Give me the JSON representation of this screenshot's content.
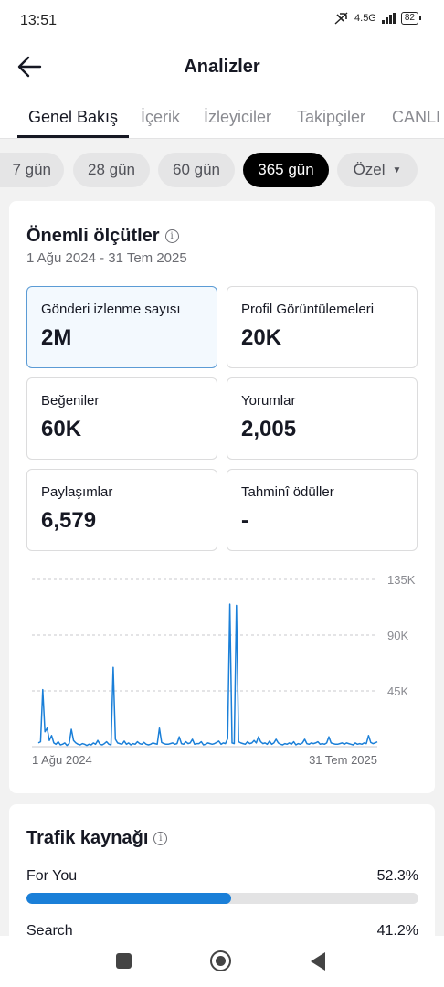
{
  "status": {
    "time": "13:51",
    "network": "4.5G",
    "battery": "82"
  },
  "header": {
    "title": "Analizler"
  },
  "tabs": [
    {
      "label": "Genel Bakış",
      "active": true
    },
    {
      "label": "İçerik"
    },
    {
      "label": "İzleyiciler"
    },
    {
      "label": "Takipçiler"
    },
    {
      "label": "CANLI"
    }
  ],
  "ranges": [
    {
      "label": "7 gün"
    },
    {
      "label": "28 gün"
    },
    {
      "label": "60 gün"
    },
    {
      "label": "365 gün",
      "active": true
    },
    {
      "label": "Özel"
    }
  ],
  "key_metrics": {
    "title": "Önemli ölçütler",
    "date_range": "1 Ağu 2024 - 31 Tem 2025",
    "items": [
      {
        "label": "Gönderi izlenme sayısı",
        "value": "2M",
        "active": true
      },
      {
        "label": "Profil Görüntülemeleri",
        "value": "20K"
      },
      {
        "label": "Beğeniler",
        "value": "60K"
      },
      {
        "label": "Yorumlar",
        "value": "2,005"
      },
      {
        "label": "Paylaşımlar",
        "value": "6,579"
      },
      {
        "label": "Tahminî ödüller",
        "value": "-"
      }
    ]
  },
  "chart_data": {
    "type": "line",
    "y_ticks": [
      "135K",
      "90K",
      "45K"
    ],
    "x_labels": [
      "1 Ağu 2024",
      "31 Tem 2025"
    ],
    "ylim": [
      0,
      135000
    ],
    "grid": true,
    "color": "#1a7fd8",
    "values": [
      3000,
      4000,
      46000,
      12000,
      15000,
      5000,
      9000,
      3000,
      2000,
      4000,
      1500,
      2000,
      3000,
      1000,
      2500,
      14000,
      5000,
      3000,
      2000,
      1500,
      2500,
      2000,
      1000,
      2000,
      1500,
      3000,
      2000,
      5000,
      2000,
      1500,
      2500,
      4000,
      2000,
      1500,
      64000,
      6000,
      3000,
      2500,
      2000,
      4500,
      2000,
      3000,
      1500,
      2500,
      2000,
      4000,
      2500,
      2000,
      3500,
      2000,
      1500,
      2000,
      3000,
      2500,
      2000,
      15000,
      3500,
      2500,
      2000,
      2000,
      2500,
      3000,
      2000,
      2500,
      8000,
      2500,
      2000,
      4000,
      2500,
      3000,
      6000,
      2000,
      2500,
      2500,
      4000,
      1500,
      2000,
      3000,
      2500,
      2000,
      2500,
      3500,
      4500,
      2000,
      3000,
      2500,
      6500,
      115000,
      3000,
      2500,
      114000,
      4000,
      3000,
      2500,
      2000,
      4000,
      2500,
      3000,
      5000,
      3000,
      8000,
      4000,
      2500,
      3000,
      2000,
      4500,
      2000,
      3000,
      6000,
      3000,
      2000,
      1500,
      2500,
      2000,
      3000,
      2000,
      4000,
      1500,
      2500,
      2000,
      3000,
      6000,
      2500,
      2000,
      3000,
      2500,
      3000,
      4000,
      2000,
      2500,
      2000,
      3000,
      8000,
      3000,
      2500,
      2000,
      2000,
      2500,
      3000,
      2000,
      3000,
      2500,
      2000,
      1500,
      3000,
      2000,
      2500,
      2000,
      3000,
      2500,
      9000,
      3500,
      2500,
      3000,
      4000
    ]
  },
  "traffic": {
    "title": "Trafik kaynağı",
    "items": [
      {
        "name": "For You",
        "pct": "52.3%",
        "fraction": 0.523
      },
      {
        "name": "Search",
        "pct": "41.2%",
        "fraction": 0.412
      }
    ]
  }
}
